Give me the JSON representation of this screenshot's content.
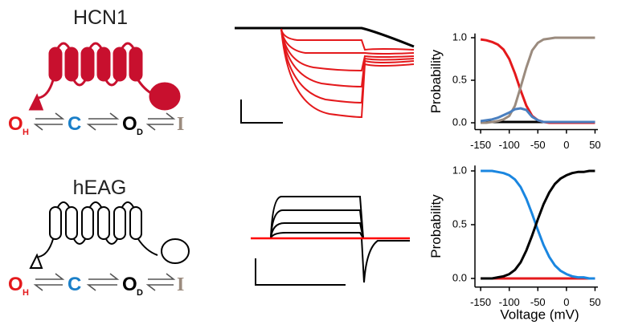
{
  "panels": [
    {
      "channel": "HCN1",
      "states": {
        "oh": "O",
        "oh_sub": "H",
        "c": "C",
        "od": "O",
        "od_sub": "D",
        "i": "I"
      }
    },
    {
      "channel": "hEAG",
      "states": {
        "oh": "O",
        "oh_sub": "H",
        "c": "C",
        "od": "O",
        "od_sub": "D",
        "i": "I"
      }
    }
  ],
  "chart_data": [
    {
      "type": "line",
      "y_label": "Probability",
      "x": [
        -150,
        -140,
        -130,
        -120,
        -110,
        -100,
        -90,
        -80,
        -70,
        -60,
        -50,
        -40,
        -30,
        -20,
        -10,
        0,
        10,
        20,
        30,
        40,
        50
      ],
      "xlim": [
        -160,
        55
      ],
      "ylim": [
        -0.08,
        1.05
      ],
      "xticks": [
        -150,
        -100,
        -50,
        0,
        50
      ],
      "yticks": [
        {
          "value": 0,
          "label": "0.0"
        },
        {
          "value": 0.5,
          "label": "0.5"
        },
        {
          "value": 1,
          "label": "1.0"
        }
      ],
      "series": [
        {
          "color": "#000000",
          "values": [
            0.01,
            0.01,
            0.01,
            0.01,
            0.01,
            0.01,
            0.01,
            0.01,
            0.01,
            0.01,
            0.01,
            0.01,
            0.01,
            0.01,
            0.01,
            0.01,
            0.01,
            0.01,
            0.01,
            0.01,
            0.01
          ]
        },
        {
          "color": "#e4191c",
          "values": [
            0.98,
            0.97,
            0.95,
            0.92,
            0.86,
            0.75,
            0.58,
            0.38,
            0.2,
            0.08,
            0.03,
            0.01,
            0,
            0,
            0,
            0,
            0,
            0,
            0,
            0,
            0
          ]
        },
        {
          "color": "#9b8b7e",
          "values": [
            0,
            0,
            0.01,
            0.02,
            0.04,
            0.08,
            0.2,
            0.42,
            0.65,
            0.85,
            0.94,
            0.98,
            0.99,
            1,
            1,
            1,
            1,
            1,
            1,
            1,
            1
          ]
        },
        {
          "color": "#4a7fbf",
          "values": [
            0.02,
            0.03,
            0.04,
            0.06,
            0.09,
            0.12,
            0.16,
            0.17,
            0.15,
            0.07,
            0.03,
            0.01,
            0.01,
            0.01,
            0.01,
            0.01,
            0.01,
            0.01,
            0.01,
            0.01,
            0.01
          ]
        }
      ]
    },
    {
      "type": "line",
      "y_label": "Probability",
      "x_label": "Voltage (mV)",
      "x": [
        -150,
        -140,
        -130,
        -120,
        -110,
        -100,
        -90,
        -80,
        -70,
        -60,
        -50,
        -40,
        -30,
        -20,
        -10,
        0,
        10,
        20,
        30,
        40,
        50
      ],
      "xlim": [
        -160,
        55
      ],
      "ylim": [
        -0.08,
        1.05
      ],
      "xticks": [
        -150,
        -100,
        -50,
        0,
        50
      ],
      "yticks": [
        {
          "value": 0,
          "label": "0.0"
        },
        {
          "value": 0.5,
          "label": "0.5"
        },
        {
          "value": 1,
          "label": "1.0"
        }
      ],
      "series": [
        {
          "color": "#e4191c",
          "values": [
            0,
            0,
            0,
            0,
            0,
            0,
            0,
            0,
            0,
            0,
            0,
            0,
            0,
            0,
            0,
            0,
            0,
            0,
            0,
            0,
            0
          ]
        },
        {
          "color": "#1a86e0",
          "values": [
            1,
            1,
            1,
            0.99,
            0.98,
            0.96,
            0.92,
            0.85,
            0.74,
            0.6,
            0.45,
            0.31,
            0.2,
            0.12,
            0.07,
            0.04,
            0.02,
            0.01,
            0.01,
            0,
            0
          ]
        },
        {
          "color": "#000000",
          "values": [
            0,
            0,
            0,
            0.01,
            0.02,
            0.04,
            0.08,
            0.15,
            0.26,
            0.4,
            0.55,
            0.69,
            0.8,
            0.88,
            0.93,
            0.96,
            0.98,
            0.99,
            0.99,
            1,
            1
          ]
        }
      ]
    }
  ]
}
